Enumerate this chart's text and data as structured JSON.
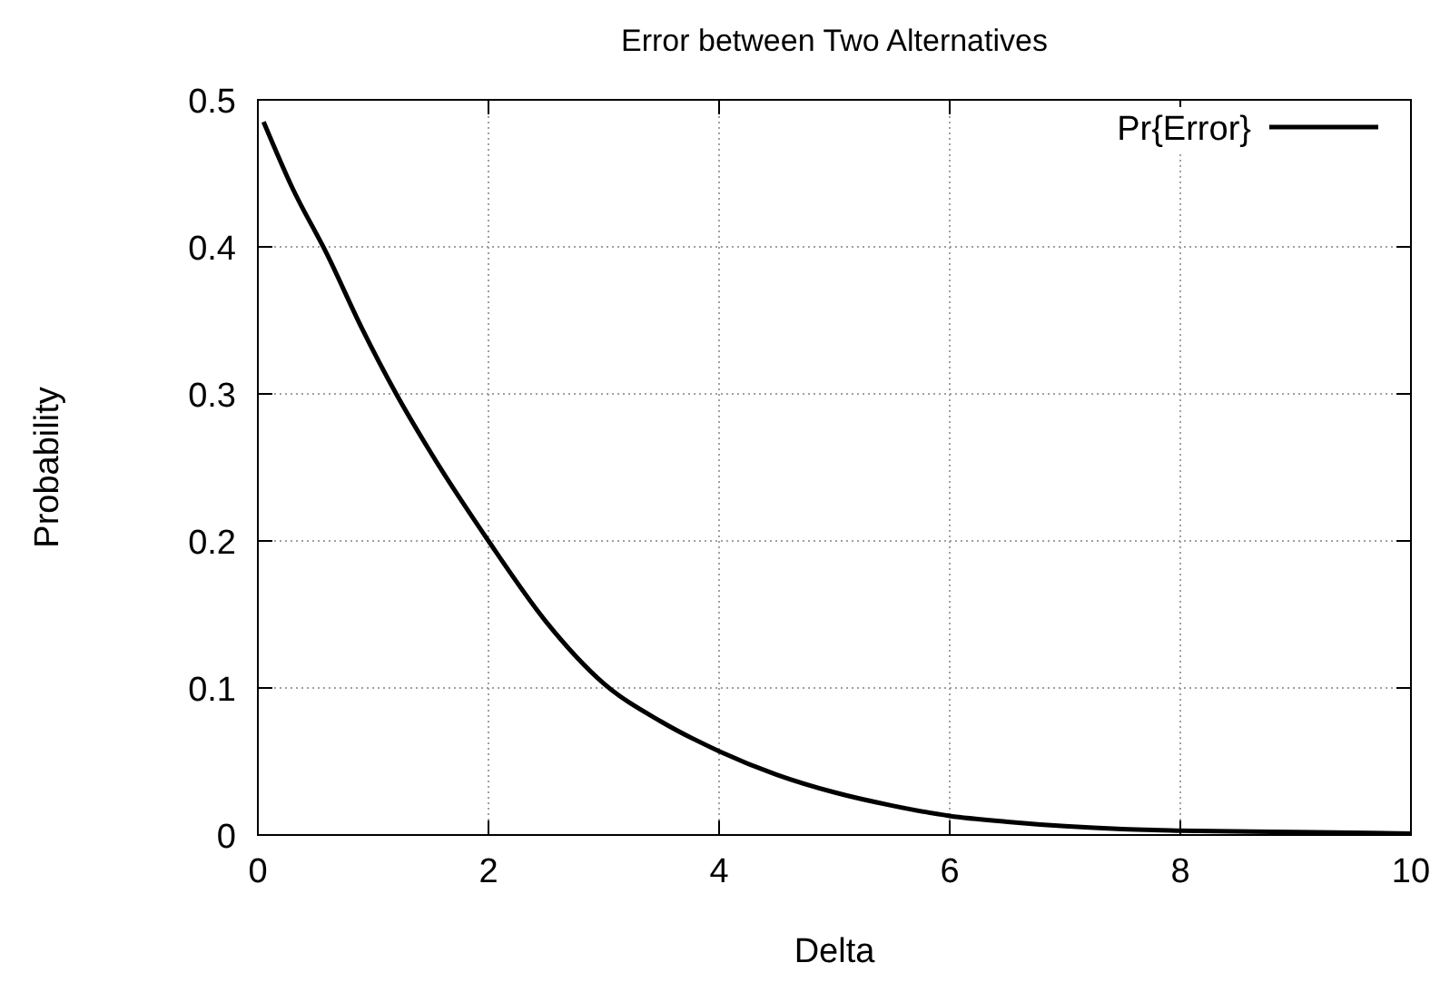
{
  "chart_data": {
    "type": "line",
    "title": "Error between Two Alternatives",
    "xlabel": "Delta",
    "ylabel": "Probability",
    "series": [
      {
        "name": "Pr{Error}",
        "color": "#000000",
        "x": [
          0.05,
          0.3,
          0.6,
          0.9,
          1.2,
          1.5,
          2,
          2.5,
          3,
          3.5,
          4,
          4.5,
          5,
          5.5,
          6,
          6.5,
          7,
          7.5,
          8,
          9,
          10
        ],
        "values": [
          0.485,
          0.44,
          0.395,
          0.345,
          0.3,
          0.26,
          0.2,
          0.145,
          0.103,
          0.077,
          0.057,
          0.041,
          0.029,
          0.02,
          0.013,
          0.009,
          0.006,
          0.004,
          0.003,
          0.002,
          0.001
        ]
      }
    ],
    "xlim": [
      0,
      10
    ],
    "ylim": [
      0,
      0.5
    ],
    "xticks": [
      0,
      2,
      4,
      6,
      8,
      10
    ],
    "yticks": [
      0,
      0.1,
      0.2,
      0.3,
      0.4,
      0.5
    ],
    "grid": true,
    "legend": "top right",
    "marker": "none",
    "line_style": "solid"
  }
}
